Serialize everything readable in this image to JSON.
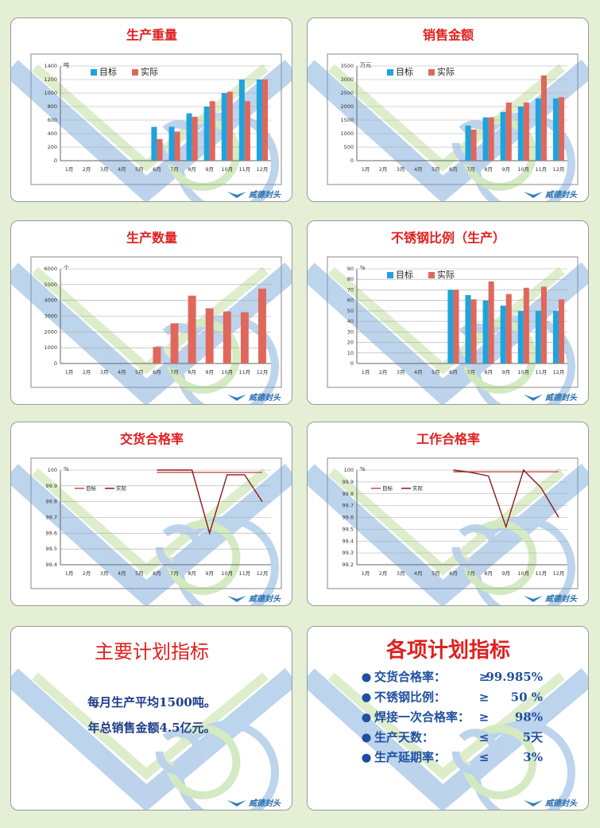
{
  "chart_data": [
    {
      "type": "bar",
      "title": "生产重量",
      "y_label": "吨",
      "categories": [
        "1月",
        "2月",
        "3月",
        "4月",
        "5月",
        "6月",
        "7月",
        "8月",
        "9月",
        "10月",
        "11月",
        "12月"
      ],
      "series": [
        {
          "name": "目标",
          "color": "#1fa3dd",
          "values": [
            null,
            null,
            null,
            null,
            null,
            500,
            500,
            700,
            800,
            1000,
            1200,
            1200
          ]
        },
        {
          "name": "实际",
          "color": "#e0675c",
          "values": [
            null,
            null,
            null,
            null,
            null,
            320,
            430,
            650,
            880,
            1020,
            880,
            1200
          ]
        }
      ],
      "ylim": [
        0,
        1400
      ],
      "yticks": [
        0,
        200,
        400,
        600,
        800,
        1000,
        1200,
        1400
      ],
      "grid": true,
      "legend": "top-left"
    },
    {
      "type": "bar",
      "title": "销售金额",
      "y_label": "万元",
      "categories": [
        "1月",
        "2月",
        "3月",
        "4月",
        "5月",
        "6月",
        "7月",
        "8月",
        "9月",
        "10月",
        "11月",
        "12月"
      ],
      "series": [
        {
          "name": "目标",
          "color": "#1fa3dd",
          "values": [
            null,
            null,
            null,
            null,
            null,
            null,
            1300,
            1600,
            1800,
            2000,
            2300,
            2300
          ]
        },
        {
          "name": "实际",
          "color": "#e0675c",
          "values": [
            null,
            null,
            null,
            null,
            null,
            null,
            1150,
            1600,
            2150,
            2150,
            3150,
            2350
          ]
        }
      ],
      "ylim": [
        0,
        3500
      ],
      "yticks": [
        0,
        500,
        1000,
        1500,
        2000,
        2500,
        3000,
        3500
      ],
      "grid": true,
      "legend": "top-left"
    },
    {
      "type": "bar",
      "title": "生产数量",
      "y_label": "个",
      "categories": [
        "1月",
        "2月",
        "3月",
        "4月",
        "5月",
        "6月",
        "7月",
        "8月",
        "9月",
        "10月",
        "11月",
        "12月"
      ],
      "values": [
        null,
        null,
        null,
        null,
        null,
        1050,
        2550,
        4300,
        3500,
        3300,
        3250,
        4750
      ],
      "color": "#e0675c",
      "ylim": [
        0,
        6000
      ],
      "yticks": [
        0,
        1000,
        2000,
        3000,
        4000,
        5000,
        6000
      ],
      "grid": true
    },
    {
      "type": "bar",
      "title": "不锈钢比例（生产）",
      "y_label": "%",
      "categories": [
        "1月",
        "2月",
        "3月",
        "4月",
        "5月",
        "6月",
        "7月",
        "8月",
        "9月",
        "10月",
        "11月",
        "12月"
      ],
      "series": [
        {
          "name": "目标",
          "color": "#1fa3dd",
          "values": [
            null,
            null,
            null,
            null,
            null,
            70,
            65,
            60,
            55,
            50,
            50,
            50
          ]
        },
        {
          "name": "实际",
          "color": "#e0675c",
          "values": [
            null,
            null,
            null,
            null,
            null,
            70,
            61,
            78,
            66,
            72,
            73,
            61
          ]
        }
      ],
      "ylim": [
        0,
        90
      ],
      "yticks": [
        0,
        10,
        20,
        30,
        40,
        50,
        60,
        70,
        80,
        90
      ],
      "grid": true,
      "legend": "top-left"
    },
    {
      "type": "line",
      "title": "交货合格率",
      "y_label": "%",
      "categories": [
        "1月",
        "2月",
        "3月",
        "4月",
        "5月",
        "6月",
        "7月",
        "8月",
        "9月",
        "10月",
        "11月",
        "12月"
      ],
      "series": [
        {
          "name": "目标",
          "color": "#c0504d",
          "values": [
            null,
            null,
            null,
            null,
            null,
            99.985,
            99.985,
            99.985,
            99.985,
            99.985,
            99.985,
            99.985
          ]
        },
        {
          "name": "实际",
          "color": "#8b1a1a",
          "values": [
            null,
            null,
            null,
            null,
            null,
            100,
            100,
            100,
            99.6,
            99.97,
            99.97,
            99.8
          ]
        }
      ],
      "ylim": [
        99.4,
        100
      ],
      "yticks": [
        99.4,
        99.5,
        99.6,
        99.7,
        99.8,
        99.9,
        100
      ],
      "grid": true,
      "legend": "top-left"
    },
    {
      "type": "line",
      "title": "工作合格率",
      "y_label": "%",
      "categories": [
        "1月",
        "2月",
        "3月",
        "4月",
        "5月",
        "6月",
        "7月",
        "8月",
        "9月",
        "10月",
        "11月",
        "12月"
      ],
      "series": [
        {
          "name": "目标",
          "color": "#c0504d",
          "values": [
            null,
            null,
            null,
            null,
            null,
            99.985,
            99.985,
            99.985,
            99.985,
            99.985,
            99.985,
            99.985
          ]
        },
        {
          "name": "实际",
          "color": "#8b1a1a",
          "values": [
            null,
            null,
            null,
            null,
            null,
            100,
            99.98,
            99.95,
            99.52,
            100,
            99.85,
            99.6
          ]
        }
      ],
      "ylim": [
        99.2,
        100
      ],
      "yticks": [
        99.2,
        99.3,
        99.4,
        99.5,
        99.6,
        99.7,
        99.8,
        99.9,
        100
      ],
      "grid": true,
      "legend": "top-left"
    }
  ],
  "logo": "威德封头",
  "main_plan": {
    "title": "主要计划指标",
    "lines": [
      "每月生产平均1500吨。",
      "年总销售金额4.5亿元。"
    ]
  },
  "plan_items": {
    "title": "各项计划指标",
    "items": [
      {
        "label": "交货合格率：",
        "op": "≥",
        "value": "99.985%"
      },
      {
        "label": "不锈钢比例：",
        "op": "≥",
        "value": "50 %"
      },
      {
        "label": "焊接一次合格率：",
        "op": "≥",
        "value": "98%"
      },
      {
        "label": "生产天数：",
        "op": "≤",
        "value": "5天"
      },
      {
        "label": "生产延期率：",
        "op": "≤",
        "value": "3%"
      }
    ]
  }
}
